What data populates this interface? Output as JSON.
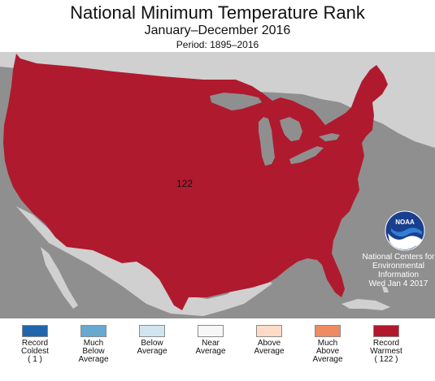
{
  "header": {
    "title": "National Minimum Temperature Rank",
    "subtitle": "January–December 2016",
    "period": "Period: 1895–2016"
  },
  "map": {
    "rank_value": "122",
    "colors": {
      "conus_fill": "#b01a2e",
      "surrounding_land": "#d0d0d0",
      "ocean": "#8f8f8f"
    }
  },
  "credit": {
    "org_lines": [
      "National Centers for",
      "Environmental",
      "Information"
    ],
    "date": "Wed Jan  4 2017",
    "logo_text": "NOAA"
  },
  "legend": {
    "items": [
      {
        "lines": [
          "Record",
          "Coldest",
          "( 1 )"
        ],
        "color": "#2166ac"
      },
      {
        "lines": [
          "Much",
          "Below",
          "Average"
        ],
        "color": "#67a9cf"
      },
      {
        "lines": [
          "Below",
          "Average"
        ],
        "color": "#d1e5f0"
      },
      {
        "lines": [
          "Near",
          "Average"
        ],
        "color": "#f7f7f7"
      },
      {
        "lines": [
          "Above",
          "Average"
        ],
        "color": "#fddbc7"
      },
      {
        "lines": [
          "Much",
          "Above",
          "Average"
        ],
        "color": "#ef8a62"
      },
      {
        "lines": [
          "Record",
          "Warmest",
          "( 122 )"
        ],
        "color": "#b2182b"
      }
    ]
  }
}
